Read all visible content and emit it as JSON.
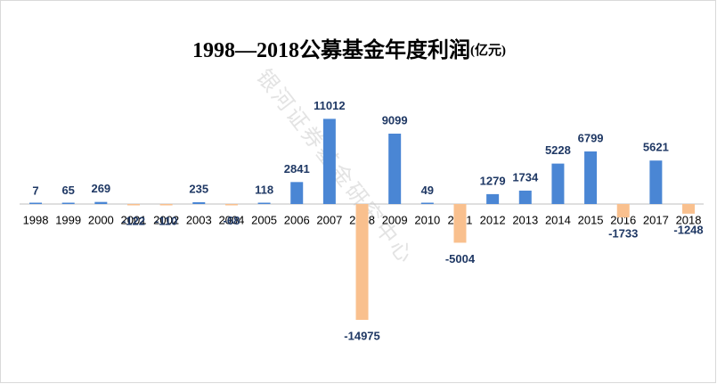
{
  "chart_data": {
    "type": "bar",
    "title": "1998—2018公募基金年度利润",
    "subtitle": "(亿元)",
    "watermark": "银河证券基金研究中心",
    "categories": [
      "1998",
      "1999",
      "2000",
      "2001",
      "2002",
      "2003",
      "2004",
      "2005",
      "2006",
      "2007",
      "2008",
      "2009",
      "2010",
      "2011",
      "2012",
      "2013",
      "2014",
      "2015",
      "2016",
      "2017",
      "2018"
    ],
    "values": [
      7,
      65,
      269,
      -122,
      -110,
      235,
      -68,
      118,
      2841,
      11012,
      -14975,
      9099,
      49,
      -5004,
      1279,
      1734,
      5228,
      6799,
      -1733,
      5621,
      -1248
    ],
    "color": "#4a86d4",
    "negative_color": "#f9c08e"
  }
}
